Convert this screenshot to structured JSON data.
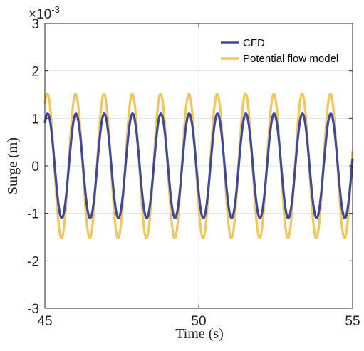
{
  "chart_data": {
    "type": "line",
    "xlabel": "Time (s)",
    "ylabel": "Surge (m)",
    "xlim": [
      45,
      55
    ],
    "ylim": [
      -3,
      3
    ],
    "x_ticks": [
      "45",
      "50",
      "55"
    ],
    "y_ticks": [
      "-3",
      "-2",
      "-1",
      "0",
      "1",
      "2",
      "3"
    ],
    "y_exponent_base": "×10",
    "y_exponent_power": "-3",
    "grid": true,
    "legend_position": "top-right",
    "series": [
      {
        "name": "CFD",
        "color": "#3b4a9e",
        "amplitude": 1.1,
        "period_s": 0.92,
        "value_at_start": 0.9,
        "value_at_end": -0.15,
        "amplitude_unit": "x10^-3 m"
      },
      {
        "name": "Potential flow model",
        "color": "#f5c55c",
        "amplitude": 1.52,
        "period_s": 0.92,
        "value_at_start": 1.3,
        "value_at_end": 0.5,
        "amplitude_unit": "x10^-3 m"
      }
    ]
  }
}
